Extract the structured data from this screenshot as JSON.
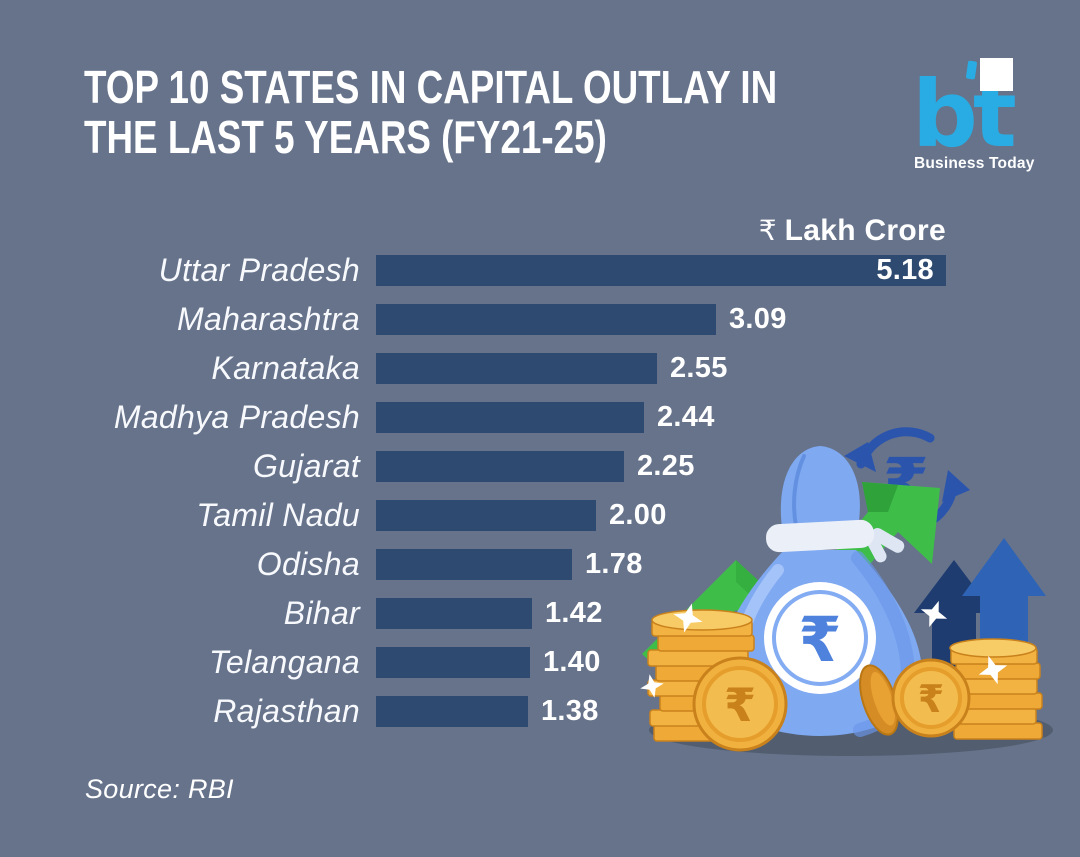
{
  "symbols": {
    "rupee": "₹"
  },
  "header": {
    "title_line1": "TOP 10 STATES IN CAPITAL OUTLAY IN",
    "title_line2": "THE LAST 5 YEARS (FY21-25)",
    "logo_text": "bt",
    "logo_caption": "Business Today"
  },
  "chart_data": {
    "type": "bar",
    "orientation": "horizontal",
    "title": "TOP 10 STATES IN CAPITAL OUTLAY IN THE LAST 5 YEARS (FY21-25)",
    "unit_prefix": "₹",
    "unit_text": "Lakh Crore",
    "unit_label": "₹ Lakh Crore",
    "categories": [
      "Uttar Pradesh",
      "Maharashtra",
      "Karnataka",
      "Madhya Pradesh",
      "Gujarat",
      "Tamil Nadu",
      "Odisha",
      "Bihar",
      "Telangana",
      "Rajasthan"
    ],
    "values": [
      5.18,
      3.09,
      2.55,
      2.44,
      2.25,
      2.0,
      1.78,
      1.42,
      1.4,
      1.38
    ],
    "value_labels": [
      "5.18",
      "3.09",
      "2.55",
      "2.44",
      "2.25",
      "2.00",
      "1.78",
      "1.42",
      "1.40",
      "1.38"
    ],
    "xlim": [
      0,
      5.18
    ],
    "grid": false,
    "legend": false,
    "bar_color": "#2F4A70",
    "value_label_position": "outside bar end; max value inside bar"
  },
  "footer": {
    "source": "Source: RBI"
  },
  "colors": {
    "background": "#66738B",
    "bar": "#2F4A70",
    "text": "#FFFFFF",
    "brand_cyan": "#29ACE3",
    "illustration_green": "#3EBE49",
    "illustration_blue": "#2E63B6",
    "illustration_gold": "#EFA936"
  }
}
